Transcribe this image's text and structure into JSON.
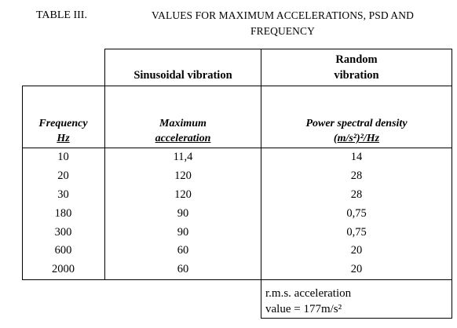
{
  "caption": {
    "label": "TABLE III.",
    "title_line1": "VALUES FOR MAXIMUM ACCELERATIONS, PSD AND",
    "title_line2": "FREQUENCY"
  },
  "headers": {
    "sinusoidal": "Sinusoidal vibration",
    "random_line1": "Random",
    "random_line2": "vibration",
    "freq_line1": "Frequency",
    "freq_line2": "Hz",
    "accel_line1": "Maximum",
    "accel_line2": "acceleration",
    "psd_line1": "Power spectral density",
    "psd_line2": "(m/s²)²/Hz"
  },
  "rows": [
    {
      "frequency": "10",
      "acceleration": "11,4",
      "psd": "14"
    },
    {
      "frequency": "20",
      "acceleration": "120",
      "psd": "28"
    },
    {
      "frequency": "30",
      "acceleration": "120",
      "psd": "28"
    },
    {
      "frequency": "180",
      "acceleration": "90",
      "psd": "0,75"
    },
    {
      "frequency": "300",
      "acceleration": "90",
      "psd": "0,75"
    },
    {
      "frequency": "600",
      "acceleration": "60",
      "psd": "20"
    },
    {
      "frequency": "2000",
      "acceleration": "60",
      "psd": "20"
    }
  ],
  "rms": {
    "line1": "r.m.s. acceleration",
    "line2": "value = 177m/s²"
  }
}
